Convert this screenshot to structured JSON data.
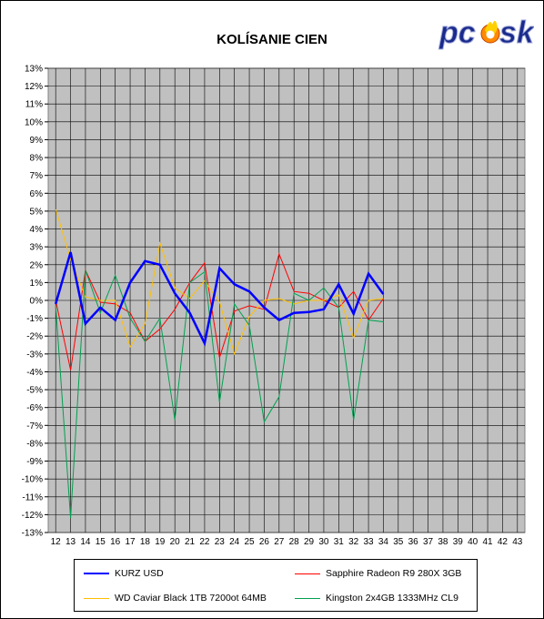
{
  "chart_data": {
    "type": "line",
    "title": "KOLÍSANIE CIEN",
    "xlabel": "",
    "ylabel": "",
    "x": [
      12,
      13,
      14,
      15,
      16,
      17,
      18,
      19,
      20,
      21,
      22,
      23,
      24,
      25,
      26,
      27,
      28,
      29,
      30,
      31,
      32,
      33,
      34
    ],
    "x_ticks": [
      "12",
      "13",
      "14",
      "15",
      "16",
      "17",
      "18",
      "19",
      "20",
      "21",
      "22",
      "23",
      "24",
      "25",
      "26",
      "27",
      "28",
      "29",
      "30",
      "31",
      "32",
      "33",
      "34",
      "35",
      "36",
      "37",
      "38",
      "39",
      "40",
      "41",
      "42",
      "43"
    ],
    "xlim": [
      11.5,
      43.5
    ],
    "ylim": [
      -13,
      13
    ],
    "y_ticks": [
      "13%",
      "12%",
      "11%",
      "10%",
      "9%",
      "8%",
      "7%",
      "6%",
      "5%",
      "4%",
      "3%",
      "2%",
      "1%",
      "0%",
      "-1%",
      "-2%",
      "-3%",
      "-4%",
      "-5%",
      "-6%",
      "-7%",
      "-8%",
      "-9%",
      "-10%",
      "-11%",
      "-12%",
      "-13%"
    ],
    "grid": true,
    "legend_position": "bottom",
    "series": [
      {
        "name": "KURZ USD",
        "color": "#0000ff",
        "width": 2.5,
        "values": [
          -0.2,
          2.7,
          -1.3,
          -0.4,
          -1.1,
          1.0,
          2.2,
          2.0,
          0.4,
          -0.7,
          -2.4,
          1.8,
          0.9,
          0.5,
          -0.4,
          -1.1,
          -0.7,
          -0.65,
          -0.5,
          0.9,
          -0.75,
          1.5,
          0.35
        ]
      },
      {
        "name": "Sapphire Radeon R9 280X 3GB",
        "color": "#ff0000",
        "width": 1,
        "values": [
          0.0,
          -3.9,
          1.7,
          -0.1,
          -0.2,
          -0.7,
          -2.3,
          -1.6,
          -0.5,
          1.0,
          2.1,
          -3.2,
          -0.6,
          -0.3,
          -0.5,
          2.6,
          0.5,
          0.4,
          0.0,
          -0.4,
          0.5,
          -1.1,
          0.1
        ]
      },
      {
        "name": "WD Caviar Black 1TB 7200ot 64MB",
        "color": "#ffc000",
        "width": 1,
        "values": [
          5.1,
          2.3,
          0.2,
          0.0,
          0.0,
          -2.6,
          -1.3,
          3.2,
          0.7,
          0.1,
          1.1,
          -0.1,
          -3.0,
          -0.9,
          0.0,
          0.1,
          -0.2,
          0.0,
          0.0,
          0.3,
          -2.1,
          0.0,
          0.1
        ]
      },
      {
        "name": "Kingston 2x4GB 1333MHz CL9",
        "color": "#00a050",
        "width": 1,
        "values": [
          -0.3,
          -12.2,
          1.7,
          -0.7,
          1.4,
          -1.0,
          -2.3,
          -1.0,
          -6.7,
          1.0,
          1.6,
          -5.7,
          -0.2,
          -1.4,
          -6.8,
          -5.4,
          0.4,
          0.0,
          0.7,
          -0.4,
          -6.7,
          -1.1,
          -1.2
        ]
      }
    ]
  },
  "logo": {
    "text": "pc",
    "text2": "sk",
    "colors": {
      "main": "#1a2a8c",
      "flame": "#ff8a00"
    }
  }
}
